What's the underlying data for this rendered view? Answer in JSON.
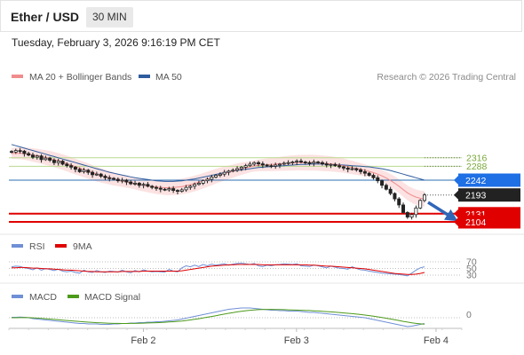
{
  "header": {
    "title": "Ether / USD",
    "timeframe": "30 MIN"
  },
  "datetime": "Tuesday, February 3, 2026 9:16:19 PM CET",
  "price_panel": {
    "legend": [
      {
        "label": "MA 20 + Bollinger Bands",
        "color": "#f08c8c"
      },
      {
        "label": "MA 50",
        "color": "#2e5c9e"
      }
    ],
    "credit": "Research © 2026 Trading Central"
  },
  "rsi_panel": {
    "legend": [
      {
        "label": "RSI",
        "color": "#6f8fd6"
      },
      {
        "label": "9MA",
        "color": "#e00000"
      }
    ],
    "levels": [
      "70",
      "50",
      "30"
    ]
  },
  "macd_panel": {
    "legend": [
      {
        "label": "MACD",
        "color": "#6f8fd6"
      },
      {
        "label": "MACD Signal",
        "color": "#4c9a1a"
      }
    ],
    "zero_label": "0"
  },
  "x_axis": {
    "labels": [
      "Feb 2",
      "Feb 3",
      "Feb 4"
    ]
  },
  "chart_data": {
    "type": "candlestick",
    "instrument": "Ether / USD",
    "timeframe": "30 MIN",
    "ylim": [
      2090,
      2370
    ],
    "price_levels": [
      {
        "label": "2316",
        "value": 2316,
        "style": "green-line"
      },
      {
        "label": "2288",
        "value": 2288,
        "style": "green-line"
      },
      {
        "label": "2242",
        "value": 2242,
        "style": "blue-line",
        "badge_color": "#1f6fe5"
      },
      {
        "label": "2193",
        "value": 2193,
        "style": "current",
        "badge_color": "#222222"
      },
      {
        "label": "2131",
        "value": 2131,
        "style": "red-line",
        "badge_color": "#e00000"
      },
      {
        "label": "2104",
        "value": 2104,
        "style": "red-line",
        "badge_color": "#e00000"
      }
    ],
    "close_series": [
      2335,
      2340,
      2338,
      2330,
      2325,
      2318,
      2322,
      2310,
      2315,
      2308,
      2300,
      2305,
      2295,
      2290,
      2285,
      2278,
      2270,
      2275,
      2268,
      2260,
      2262,
      2255,
      2250,
      2248,
      2245,
      2240,
      2242,
      2236,
      2230,
      2232,
      2225,
      2228,
      2222,
      2218,
      2215,
      2212,
      2210,
      2214,
      2208,
      2205,
      2210,
      2218,
      2222,
      2228,
      2232,
      2240,
      2245,
      2252,
      2258,
      2262,
      2268,
      2272,
      2275,
      2280,
      2285,
      2290,
      2295,
      2300,
      2296,
      2292,
      2290,
      2288,
      2292,
      2295,
      2298,
      2300,
      2302,
      2305,
      2302,
      2300,
      2298,
      2302,
      2300,
      2296,
      2292,
      2294,
      2290,
      2286,
      2282,
      2278,
      2280,
      2276,
      2270,
      2265,
      2258,
      2250,
      2240,
      2225,
      2212,
      2198,
      2180,
      2160,
      2135,
      2120,
      2128,
      2150,
      2175,
      2193
    ],
    "ma20": [
      2330,
      2331,
      2331,
      2330,
      2328,
      2325,
      2323,
      2320,
      2317,
      2314,
      2310,
      2306,
      2302,
      2297,
      2292,
      2287,
      2282,
      2277,
      2272,
      2267,
      2262,
      2258,
      2254,
      2250,
      2246,
      2243,
      2240,
      2236,
      2233,
      2230,
      2227,
      2225,
      2223,
      2221,
      2219,
      2218,
      2217,
      2217,
      2218,
      2219,
      2221,
      2224,
      2227,
      2231,
      2235,
      2240,
      2245,
      2250,
      2255,
      2260,
      2264,
      2268,
      2272,
      2276,
      2280,
      2283,
      2286,
      2289,
      2291,
      2292,
      2293,
      2294,
      2295,
      2296,
      2297,
      2298,
      2299,
      2300,
      2300,
      2300,
      2300,
      2300,
      2299,
      2298,
      2297,
      2296,
      2294,
      2292,
      2290,
      2287,
      2284,
      2281,
      2278,
      2275,
      2271,
      2267,
      2262,
      2256,
      2249,
      2241,
      2232,
      2222,
      2211,
      2200,
      2192,
      2186,
      2182,
      2180
    ],
    "ma50": [
      2360,
      2356,
      2352,
      2348,
      2344,
      2340,
      2336,
      2332,
      2328,
      2324,
      2320,
      2316,
      2312,
      2308,
      2304,
      2300,
      2296,
      2292,
      2288,
      2284,
      2280,
      2276,
      2272,
      2268,
      2265,
      2262,
      2259,
      2256,
      2253,
      2250,
      2248,
      2246,
      2244,
      2242,
      2240,
      2239,
      2238,
      2238,
      2238,
      2239,
      2240,
      2242,
      2244,
      2246,
      2249,
      2252,
      2255,
      2258,
      2261,
      2264,
      2267,
      2270,
      2272,
      2274,
      2276,
      2278,
      2280,
      2282,
      2284,
      2285,
      2286,
      2287,
      2288,
      2289,
      2290,
      2291,
      2292,
      2293,
      2294,
      2294,
      2295,
      2295,
      2295,
      2295,
      2295,
      2294,
      2294,
      2293,
      2292,
      2291,
      2290,
      2289,
      2288,
      2287,
      2286,
      2284,
      2282,
      2280,
      2277,
      2274,
      2270,
      2266,
      2262,
      2258,
      2254,
      2250,
      2246,
      2242
    ],
    "rsi": [
      55,
      57,
      56,
      52,
      50,
      46,
      52,
      45,
      50,
      47,
      44,
      48,
      42,
      40,
      42,
      38,
      36,
      45,
      40,
      38,
      44,
      40,
      38,
      42,
      41,
      39,
      45,
      40,
      37,
      44,
      40,
      46,
      42,
      40,
      41,
      40,
      39,
      47,
      42,
      40,
      52,
      58,
      55,
      60,
      56,
      62,
      58,
      63,
      60,
      62,
      64,
      60,
      63,
      65,
      66,
      64,
      62,
      65,
      58,
      56,
      60,
      58,
      61,
      62,
      64,
      63,
      62,
      64,
      58,
      57,
      56,
      60,
      58,
      55,
      52,
      57,
      54,
      51,
      50,
      48,
      55,
      50,
      46,
      45,
      42,
      40,
      38,
      36,
      35,
      34,
      33,
      32,
      30,
      28,
      36,
      45,
      52,
      55
    ],
    "rsi_ma9": [
      52,
      52,
      53,
      53,
      52,
      51,
      51,
      50,
      49,
      49,
      48,
      47,
      46,
      45,
      45,
      44,
      43,
      42,
      41,
      41,
      40,
      40,
      40,
      40,
      40,
      40,
      41,
      41,
      41,
      41,
      41,
      42,
      42,
      42,
      42,
      42,
      42,
      42,
      42,
      42,
      43,
      45,
      47,
      49,
      51,
      53,
      55,
      57,
      58,
      59,
      60,
      61,
      61,
      62,
      62,
      62,
      62,
      62,
      62,
      61,
      61,
      61,
      61,
      61,
      61,
      61,
      61,
      61,
      61,
      61,
      60,
      60,
      59,
      58,
      57,
      57,
      56,
      55,
      54,
      53,
      52,
      51,
      50,
      49,
      47,
      45,
      43,
      41,
      39,
      37,
      35,
      34,
      33,
      32,
      32,
      33,
      35,
      38
    ],
    "macd": [
      1,
      1,
      1.5,
      1,
      0,
      -2,
      -3,
      -4,
      -5,
      -6,
      -7,
      -8,
      -9,
      -10,
      -11,
      -12,
      -13,
      -13,
      -14,
      -14,
      -14,
      -15,
      -15,
      -15,
      -14,
      -14,
      -13,
      -13,
      -12,
      -12,
      -11,
      -11,
      -10,
      -10,
      -9,
      -9,
      -8,
      -7,
      -6,
      -5,
      -3,
      -1,
      1,
      3,
      5,
      7,
      9,
      11,
      13,
      15,
      17,
      19,
      20,
      21,
      22,
      22,
      22,
      21,
      20,
      19,
      18,
      17,
      17,
      16,
      16,
      15,
      15,
      15,
      14,
      13,
      12,
      12,
      11,
      10,
      9,
      8,
      7,
      6,
      5,
      4,
      3,
      2,
      1,
      0,
      -2,
      -4,
      -6,
      -8,
      -10,
      -12,
      -14,
      -16,
      -18,
      -20,
      -19,
      -17,
      -15,
      -13
    ],
    "macd_signal": [
      0,
      0,
      0.3,
      0.4,
      0.3,
      -0.2,
      -0.8,
      -1.5,
      -2.2,
      -3,
      -3.8,
      -4.6,
      -5.4,
      -6.2,
      -7,
      -7.8,
      -8.6,
      -9.3,
      -10,
      -10.6,
      -11.1,
      -11.6,
      -12,
      -12.4,
      -12.7,
      -12.9,
      -13,
      -13,
      -12.9,
      -12.7,
      -12.5,
      -12.2,
      -11.9,
      -11.5,
      -11.1,
      -10.7,
      -10.2,
      -9.6,
      -9,
      -8.3,
      -7.4,
      -6.3,
      -5,
      -3.6,
      -2.1,
      -0.5,
      1.1,
      2.8,
      4.6,
      6.4,
      8.2,
      10,
      11.6,
      13.1,
      14.5,
      15.7,
      16.7,
      17.5,
      18.1,
      18.5,
      18.7,
      18.7,
      18.6,
      18.4,
      18.2,
      17.9,
      17.6,
      17.3,
      16.9,
      16.5,
      16.1,
      15.6,
      15.1,
      14.5,
      13.9,
      13.2,
      12.5,
      11.7,
      10.9,
      10,
      9.1,
      8.1,
      7.1,
      6,
      4.8,
      3.5,
      2,
      0.5,
      -1.1,
      -2.8,
      -4.5,
      -6.3,
      -8.1,
      -9.9,
      -11.5,
      -12.8,
      -13.8,
      -14.5
    ]
  }
}
